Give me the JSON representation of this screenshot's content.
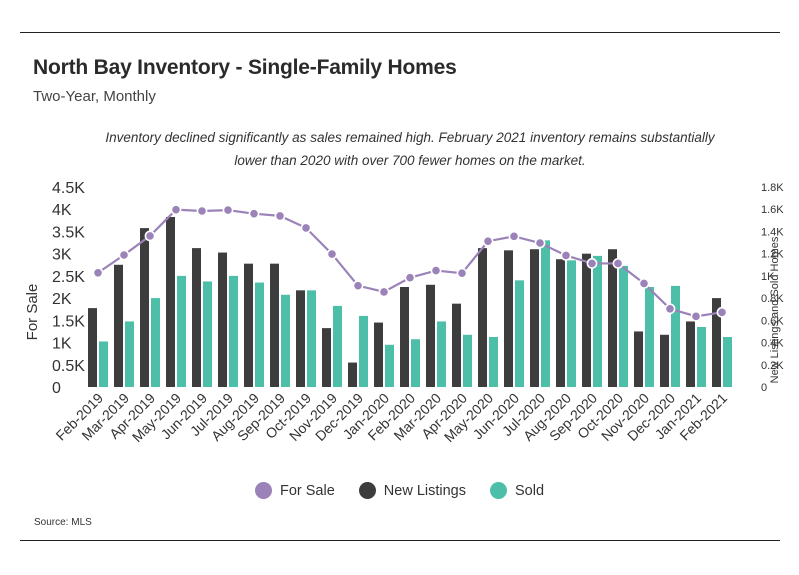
{
  "title": "North Bay Inventory - Single-Family Homes",
  "subtitle": "Two-Year, Monthly",
  "annotation": [
    "Inventory declined significantly as sales remained high. February 2021 inventory remains substantially",
    "lower than 2020 with over 700 fewer homes on the market."
  ],
  "source": "Source:  MLS",
  "colors": {
    "for_sale": "#9b82b8",
    "new_listings": "#3d3d3d",
    "sold": "#4dbfa9"
  },
  "legend": [
    {
      "key": "for_sale",
      "label": "For Sale"
    },
    {
      "key": "new_listings",
      "label": "New Listings"
    },
    {
      "key": "sold",
      "label": "Sold"
    }
  ],
  "chart_data": {
    "type": "bar",
    "categories": [
      "Feb-2019",
      "Mar-2019",
      "Apr-2019",
      "May-2019",
      "Jun-2019",
      "Jul-2019",
      "Aug-2019",
      "Sep-2019",
      "Oct-2019",
      "Nov-2019",
      "Dec-2019",
      "Jan-2020",
      "Feb-2020",
      "Mar-2020",
      "Apr-2020",
      "May-2020",
      "Jun-2020",
      "Jul-2020",
      "Aug-2020",
      "Sep-2020",
      "Oct-2020",
      "Nov-2020",
      "Dec-2020",
      "Jan-2021",
      "Feb-2021"
    ],
    "ylabel": "For Sale",
    "y2label": "New Listings and Sold Homes",
    "ylim": [
      0,
      4500
    ],
    "y2lim": [
      0,
      1800
    ],
    "yticks": [
      "0",
      "0.5K",
      "1K",
      "1.5K",
      "2K",
      "2.5K",
      "3K",
      "3.5K",
      "4K",
      "4.5K"
    ],
    "y2ticks": [
      "0",
      "0.2K",
      "0.4K",
      "0.6K",
      "0.8K",
      "1K",
      "1.2K",
      "1.4K",
      "1.6K",
      "1.8K"
    ],
    "series": [
      {
        "name": "For Sale",
        "type": "line",
        "axis": "left",
        "values": [
          2570,
          2970,
          3400,
          3990,
          3960,
          3980,
          3900,
          3850,
          3580,
          2990,
          2280,
          2140,
          2460,
          2620,
          2560,
          3280,
          3390,
          3240,
          2960,
          2780,
          2780,
          2330,
          1760,
          1590,
          1680
        ]
      },
      {
        "name": "New Listings",
        "type": "bar",
        "axis": "right",
        "values": [
          710,
          1100,
          1430,
          1530,
          1250,
          1210,
          1110,
          1110,
          870,
          530,
          220,
          580,
          900,
          920,
          750,
          1250,
          1230,
          1240,
          1150,
          1200,
          1240,
          500,
          470,
          590,
          800
        ]
      },
      {
        "name": "Sold",
        "type": "bar",
        "axis": "right",
        "values": [
          410,
          590,
          800,
          1000,
          950,
          1000,
          940,
          830,
          870,
          730,
          640,
          380,
          430,
          590,
          470,
          450,
          960,
          1320,
          1140,
          1180,
          1090,
          900,
          910,
          540,
          450
        ]
      }
    ]
  }
}
